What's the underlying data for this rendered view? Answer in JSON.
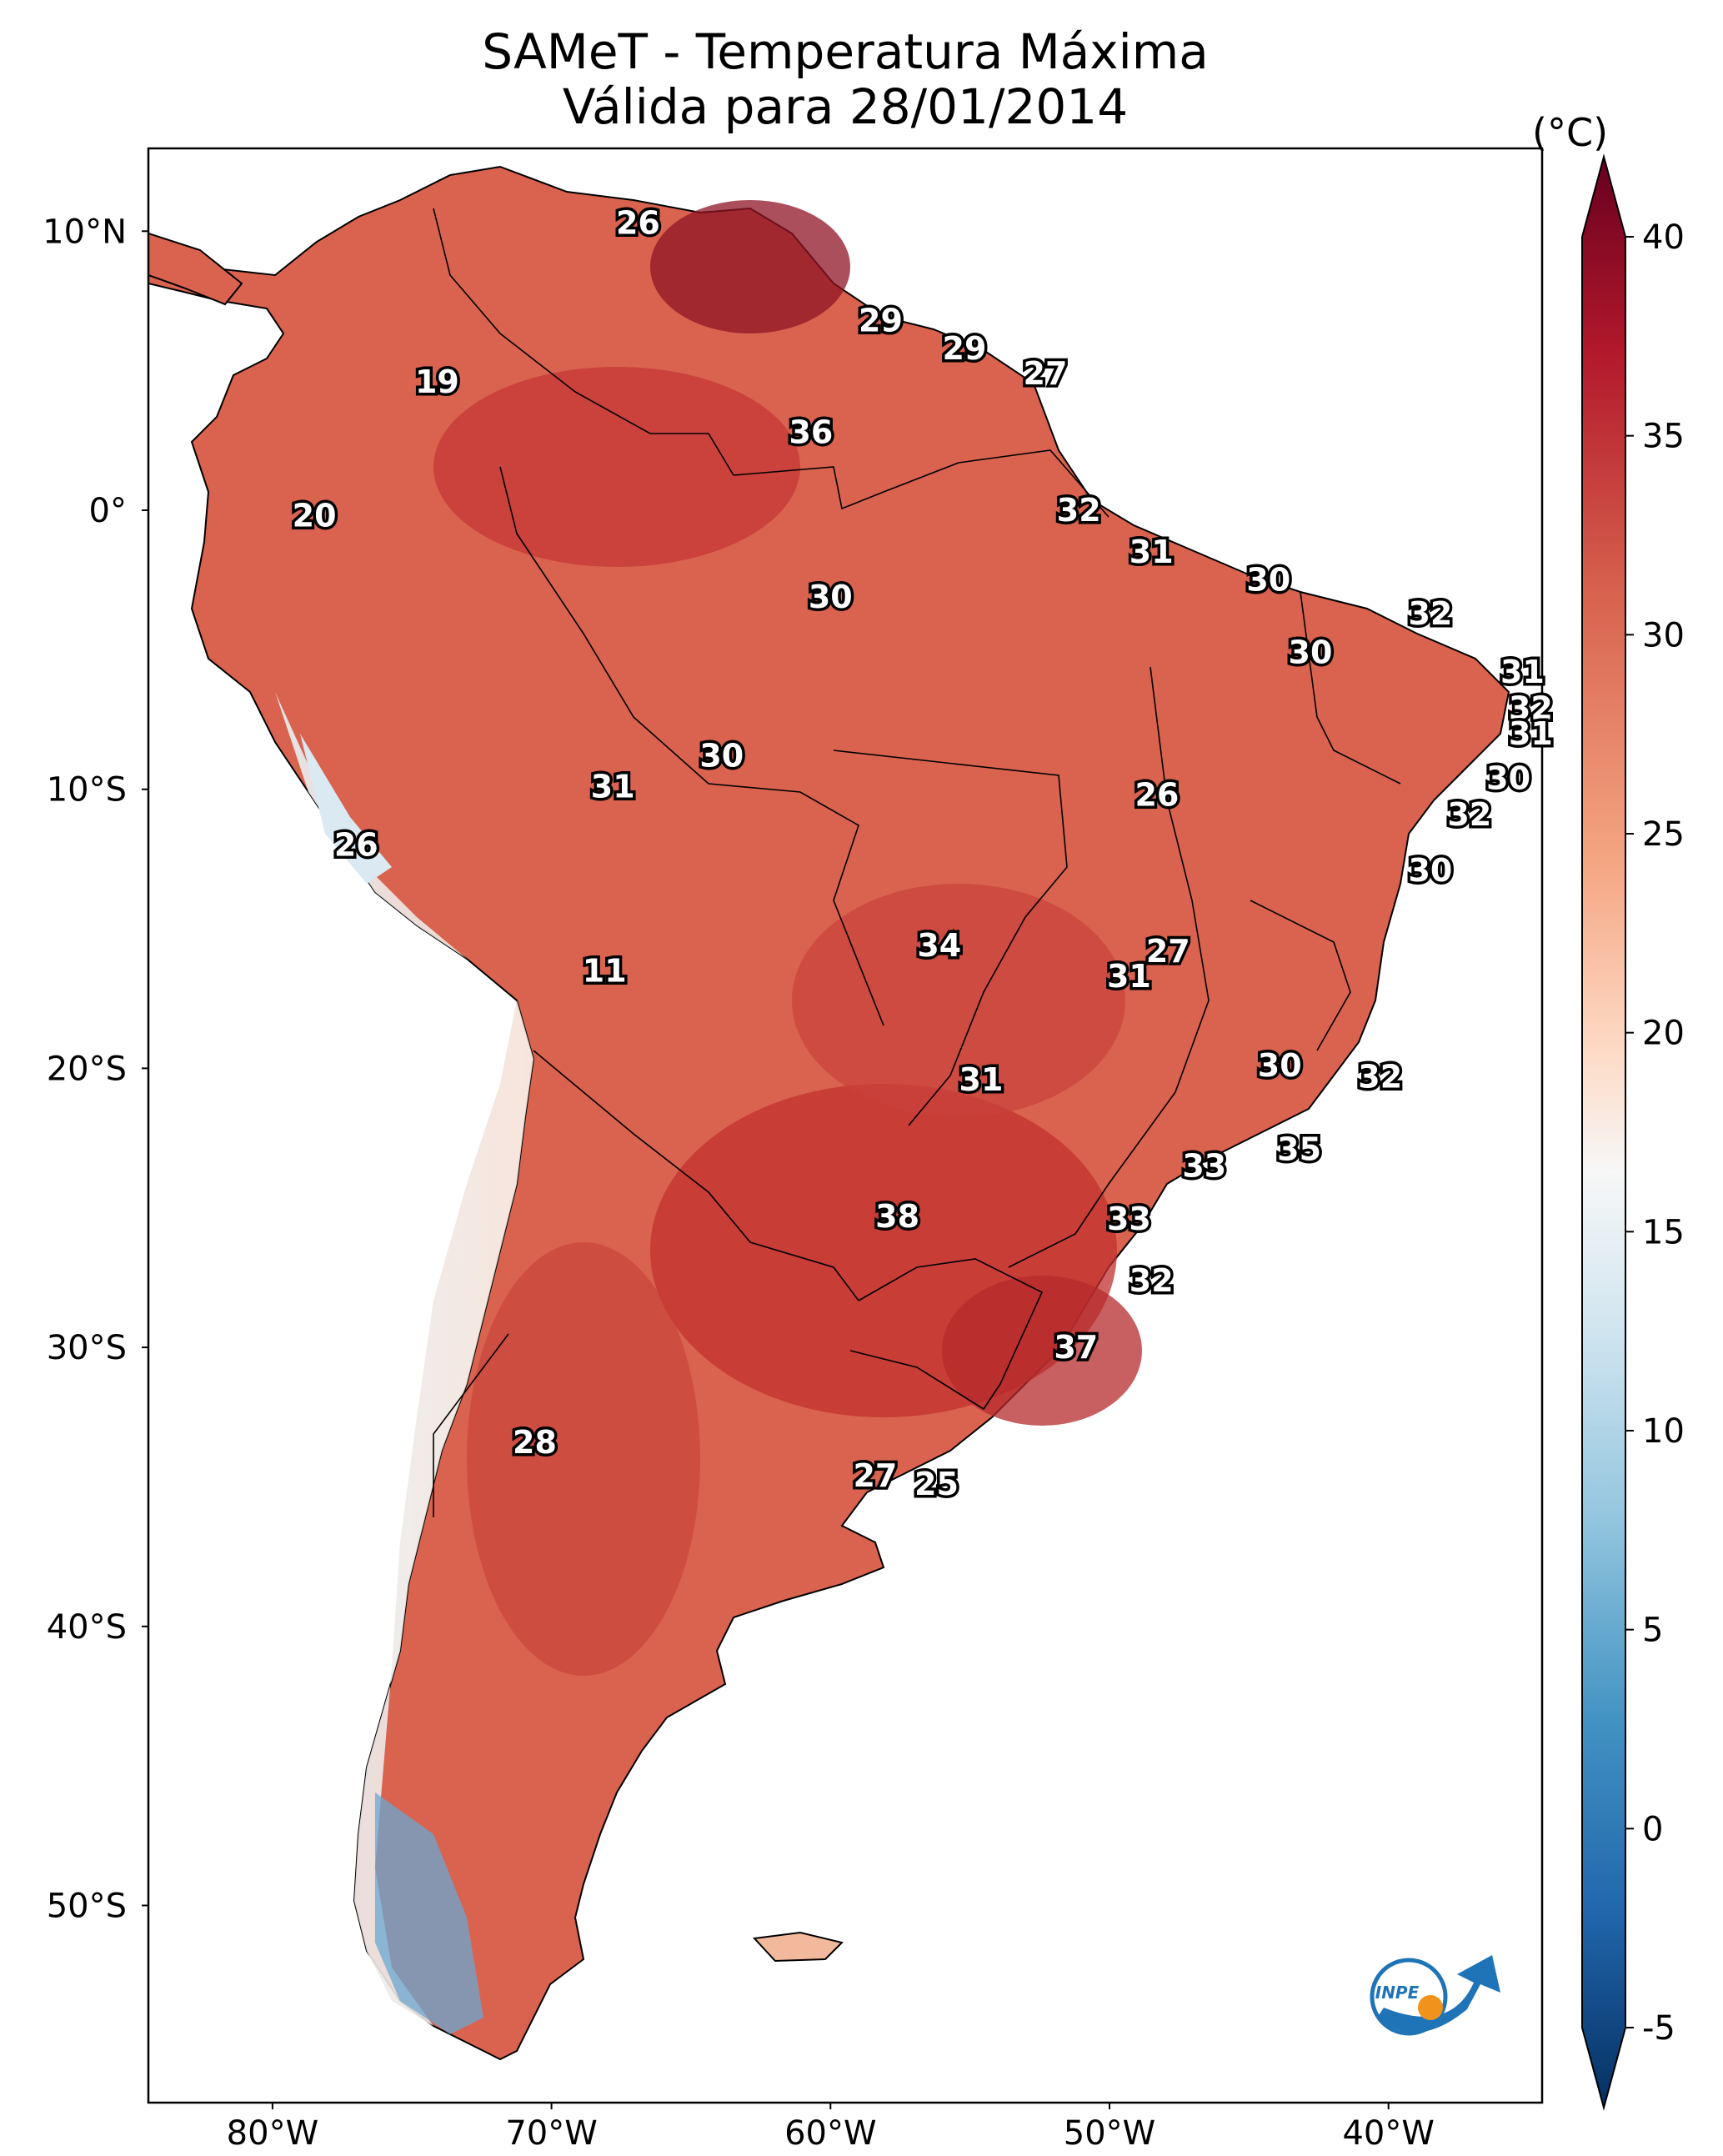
{
  "title": {
    "line1": "SAMeT - Temperatura Máxima",
    "line2": "Válida para 28/01/2014"
  },
  "axes": {
    "lat_labels": [
      "10°N",
      "0°",
      "10°S",
      "20°S",
      "30°S",
      "40°S",
      "50°S"
    ],
    "lon_labels": [
      "80°W",
      "70°W",
      "60°W",
      "50°W",
      "40°W"
    ]
  },
  "colorbar": {
    "unit": "(°C)",
    "ticks": [
      "40",
      "35",
      "30",
      "25",
      "20",
      "15",
      "10",
      "5",
      "0",
      "-5"
    ],
    "range": [
      -5,
      40
    ],
    "colors": [
      "#67001f",
      "#b2182b",
      "#d6604d",
      "#f4a582",
      "#fddbc7",
      "#f7f7f7",
      "#d1e5f0",
      "#92c5de",
      "#4393c3",
      "#2166ac",
      "#053061"
    ]
  },
  "stations": [
    {
      "label": "26",
      "lat": 10.3,
      "lon": -66.9
    },
    {
      "label": "19",
      "lat": 4.6,
      "lon": -74.1
    },
    {
      "label": "36",
      "lat": 2.8,
      "lon": -60.7
    },
    {
      "label": "29",
      "lat": 6.8,
      "lon": -58.2
    },
    {
      "label": "29",
      "lat": 5.8,
      "lon": -55.2
    },
    {
      "label": "27",
      "lat": 4.9,
      "lon": -52.3
    },
    {
      "label": "20",
      "lat": -0.2,
      "lon": -78.5
    },
    {
      "label": "32",
      "lat": 0.0,
      "lon": -51.1
    },
    {
      "label": "31",
      "lat": -1.5,
      "lon": -48.5
    },
    {
      "label": "30",
      "lat": -3.1,
      "lon": -60.0
    },
    {
      "label": "30",
      "lat": -2.5,
      "lon": -44.3
    },
    {
      "label": "32",
      "lat": -3.7,
      "lon": -38.5
    },
    {
      "label": "30",
      "lat": -5.1,
      "lon": -42.8
    },
    {
      "label": "31",
      "lat": -5.8,
      "lon": -35.2
    },
    {
      "label": "32",
      "lat": -7.1,
      "lon": -34.9
    },
    {
      "label": "31",
      "lat": -8.0,
      "lon": -34.9
    },
    {
      "label": "30",
      "lat": -9.6,
      "lon": -35.7
    },
    {
      "label": "30",
      "lat": -8.8,
      "lon": -63.9
    },
    {
      "label": "31",
      "lat": -9.9,
      "lon": -67.8
    },
    {
      "label": "26",
      "lat": -10.2,
      "lon": -48.3
    },
    {
      "label": "32",
      "lat": -10.9,
      "lon": -37.1
    },
    {
      "label": "26",
      "lat": -12.0,
      "lon": -77.0
    },
    {
      "label": "30",
      "lat": -12.9,
      "lon": -38.5
    },
    {
      "label": "34",
      "lat": -15.6,
      "lon": -56.1
    },
    {
      "label": "27",
      "lat": -15.8,
      "lon": -47.9
    },
    {
      "label": "31",
      "lat": -16.7,
      "lon": -49.3
    },
    {
      "label": "11",
      "lat": -16.5,
      "lon": -68.1
    },
    {
      "label": "30",
      "lat": -19.9,
      "lon": -43.9
    },
    {
      "label": "32",
      "lat": -20.3,
      "lon": -40.3
    },
    {
      "label": "31",
      "lat": -20.4,
      "lon": -54.6
    },
    {
      "label": "35",
      "lat": -22.9,
      "lon": -43.2
    },
    {
      "label": "33",
      "lat": -23.5,
      "lon": -46.6
    },
    {
      "label": "38",
      "lat": -25.3,
      "lon": -57.6
    },
    {
      "label": "33",
      "lat": -25.4,
      "lon": -49.3
    },
    {
      "label": "32",
      "lat": -27.6,
      "lon": -48.5
    },
    {
      "label": "37",
      "lat": -30.0,
      "lon": -51.2
    },
    {
      "label": "28",
      "lat": -33.4,
      "lon": -70.6
    },
    {
      "label": "27",
      "lat": -34.6,
      "lon": -58.4
    },
    {
      "label": "25",
      "lat": -34.9,
      "lon": -56.2
    }
  ]
}
